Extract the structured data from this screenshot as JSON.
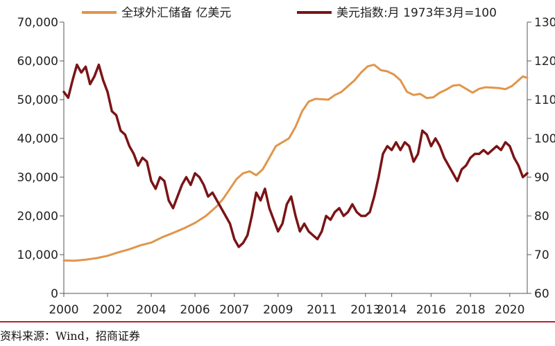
{
  "chart_data": {
    "type": "line",
    "series": [
      {
        "name": "全球外汇储备 亿美元",
        "axis": "left",
        "color": "#e0954a",
        "points": [
          [
            2000.0,
            8500
          ],
          [
            2000.5,
            8450
          ],
          [
            2001.0,
            8700
          ],
          [
            2001.5,
            9100
          ],
          [
            2002.0,
            9700
          ],
          [
            2002.5,
            10600
          ],
          [
            2003.0,
            11400
          ],
          [
            2003.5,
            12400
          ],
          [
            2004.0,
            13100
          ],
          [
            2004.5,
            14500
          ],
          [
            2005.0,
            15600
          ],
          [
            2005.5,
            16800
          ],
          [
            2006.0,
            18200
          ],
          [
            2006.5,
            20000
          ],
          [
            2007.0,
            22500
          ],
          [
            2007.3,
            24500
          ],
          [
            2007.6,
            27000
          ],
          [
            2007.9,
            29500
          ],
          [
            2008.2,
            31000
          ],
          [
            2008.5,
            31500
          ],
          [
            2008.8,
            30500
          ],
          [
            2009.1,
            32000
          ],
          [
            2009.4,
            35000
          ],
          [
            2009.7,
            38000
          ],
          [
            2010.0,
            39000
          ],
          [
            2010.3,
            40000
          ],
          [
            2010.6,
            43000
          ],
          [
            2010.9,
            47000
          ],
          [
            2011.2,
            49500
          ],
          [
            2011.5,
            50200
          ],
          [
            2011.8,
            50100
          ],
          [
            2012.1,
            50000
          ],
          [
            2012.4,
            51200
          ],
          [
            2012.7,
            52000
          ],
          [
            2013.0,
            53500
          ],
          [
            2013.3,
            55000
          ],
          [
            2013.6,
            57000
          ],
          [
            2013.9,
            58600
          ],
          [
            2014.2,
            59000
          ],
          [
            2014.5,
            57600
          ],
          [
            2014.8,
            57300
          ],
          [
            2015.1,
            56500
          ],
          [
            2015.4,
            55000
          ],
          [
            2015.7,
            52000
          ],
          [
            2016.0,
            51200
          ],
          [
            2016.3,
            51500
          ],
          [
            2016.6,
            50400
          ],
          [
            2016.9,
            50600
          ],
          [
            2017.2,
            51800
          ],
          [
            2017.5,
            52600
          ],
          [
            2017.8,
            53600
          ],
          [
            2018.1,
            53800
          ],
          [
            2018.4,
            52800
          ],
          [
            2018.7,
            51800
          ],
          [
            2019.0,
            52800
          ],
          [
            2019.3,
            53200
          ],
          [
            2019.6,
            53100
          ],
          [
            2019.9,
            53000
          ],
          [
            2020.2,
            52700
          ],
          [
            2020.5,
            53500
          ],
          [
            2020.8,
            55000
          ],
          [
            2021.0,
            56000
          ],
          [
            2021.2,
            55600
          ]
        ]
      },
      {
        "name": "美元指数:月 1973年3月=100",
        "axis": "right",
        "color": "#7a1416",
        "points": [
          [
            2000.0,
            112
          ],
          [
            2000.2,
            110.5
          ],
          [
            2000.4,
            115
          ],
          [
            2000.6,
            119
          ],
          [
            2000.8,
            117
          ],
          [
            2001.0,
            118.5
          ],
          [
            2001.2,
            114
          ],
          [
            2001.4,
            116
          ],
          [
            2001.6,
            119
          ],
          [
            2001.8,
            115
          ],
          [
            2002.0,
            112
          ],
          [
            2002.2,
            107
          ],
          [
            2002.4,
            106
          ],
          [
            2002.6,
            102
          ],
          [
            2002.8,
            101
          ],
          [
            2003.0,
            98
          ],
          [
            2003.2,
            96
          ],
          [
            2003.4,
            93
          ],
          [
            2003.6,
            95
          ],
          [
            2003.8,
            94
          ],
          [
            2004.0,
            89
          ],
          [
            2004.2,
            87
          ],
          [
            2004.4,
            90
          ],
          [
            2004.6,
            89
          ],
          [
            2004.8,
            84
          ],
          [
            2005.0,
            82
          ],
          [
            2005.2,
            85
          ],
          [
            2005.4,
            88
          ],
          [
            2005.6,
            90
          ],
          [
            2005.8,
            88
          ],
          [
            2006.0,
            91
          ],
          [
            2006.2,
            90
          ],
          [
            2006.4,
            88
          ],
          [
            2006.6,
            85
          ],
          [
            2006.8,
            86
          ],
          [
            2007.0,
            84
          ],
          [
            2007.2,
            82
          ],
          [
            2007.4,
            80
          ],
          [
            2007.6,
            78
          ],
          [
            2007.8,
            74
          ],
          [
            2008.0,
            72
          ],
          [
            2008.2,
            73
          ],
          [
            2008.4,
            75
          ],
          [
            2008.6,
            80
          ],
          [
            2008.8,
            86
          ],
          [
            2009.0,
            84
          ],
          [
            2009.2,
            87
          ],
          [
            2009.4,
            82
          ],
          [
            2009.6,
            79
          ],
          [
            2009.8,
            76
          ],
          [
            2010.0,
            78
          ],
          [
            2010.2,
            83
          ],
          [
            2010.4,
            85
          ],
          [
            2010.6,
            80
          ],
          [
            2010.8,
            76
          ],
          [
            2011.0,
            78
          ],
          [
            2011.2,
            76
          ],
          [
            2011.4,
            75
          ],
          [
            2011.6,
            74
          ],
          [
            2011.8,
            76
          ],
          [
            2012.0,
            80
          ],
          [
            2012.2,
            79
          ],
          [
            2012.4,
            81
          ],
          [
            2012.6,
            82
          ],
          [
            2012.8,
            80
          ],
          [
            2013.0,
            81
          ],
          [
            2013.2,
            83
          ],
          [
            2013.4,
            81
          ],
          [
            2013.6,
            80
          ],
          [
            2013.8,
            80
          ],
          [
            2014.0,
            81
          ],
          [
            2014.2,
            85
          ],
          [
            2014.4,
            90
          ],
          [
            2014.6,
            96
          ],
          [
            2014.8,
            98
          ],
          [
            2015.0,
            97
          ],
          [
            2015.2,
            99
          ],
          [
            2015.4,
            97
          ],
          [
            2015.6,
            99
          ],
          [
            2015.8,
            98
          ],
          [
            2016.0,
            94
          ],
          [
            2016.2,
            96
          ],
          [
            2016.4,
            102
          ],
          [
            2016.6,
            101
          ],
          [
            2016.8,
            98
          ],
          [
            2017.0,
            100
          ],
          [
            2017.2,
            98
          ],
          [
            2017.4,
            95
          ],
          [
            2017.6,
            93
          ],
          [
            2017.8,
            91
          ],
          [
            2018.0,
            89
          ],
          [
            2018.2,
            92
          ],
          [
            2018.4,
            93
          ],
          [
            2018.6,
            95
          ],
          [
            2018.8,
            96
          ],
          [
            2019.0,
            96
          ],
          [
            2019.2,
            97
          ],
          [
            2019.4,
            96
          ],
          [
            2019.6,
            97
          ],
          [
            2019.8,
            98
          ],
          [
            2020.0,
            97
          ],
          [
            2020.2,
            99
          ],
          [
            2020.4,
            98
          ],
          [
            2020.6,
            95
          ],
          [
            2020.8,
            93
          ],
          [
            2021.0,
            90
          ],
          [
            2021.2,
            91
          ]
        ]
      }
    ],
    "x_tick_labels": [
      "2000",
      "2002",
      "2004",
      "2006",
      "2007",
      "2009",
      "2011",
      "2013",
      "2014",
      "2016",
      "2018",
      "2020"
    ],
    "x_tick_values": [
      2000,
      2002,
      2004,
      2006,
      2007.8,
      2009.8,
      2011.8,
      2013.8,
      2015.0,
      2016.8,
      2018.6,
      2020.4
    ],
    "xlim": [
      2000,
      2021.2
    ],
    "y_left": {
      "lim": [
        0,
        70000
      ],
      "ticks": [
        0,
        10000,
        20000,
        30000,
        40000,
        50000,
        60000,
        70000
      ],
      "tick_labels": [
        "0",
        "10,000",
        "20,000",
        "30,000",
        "40,000",
        "50,000",
        "60,000",
        "70,000"
      ]
    },
    "y_right": {
      "lim": [
        60,
        130
      ],
      "ticks": [
        60,
        70,
        80,
        90,
        100,
        110,
        120,
        130
      ],
      "tick_labels": [
        "60",
        "70",
        "80",
        "90",
        "100",
        "110",
        "120",
        "130"
      ]
    },
    "grid": false,
    "legend_position": "top"
  },
  "source_note": "资料来源：Wind，招商证券"
}
